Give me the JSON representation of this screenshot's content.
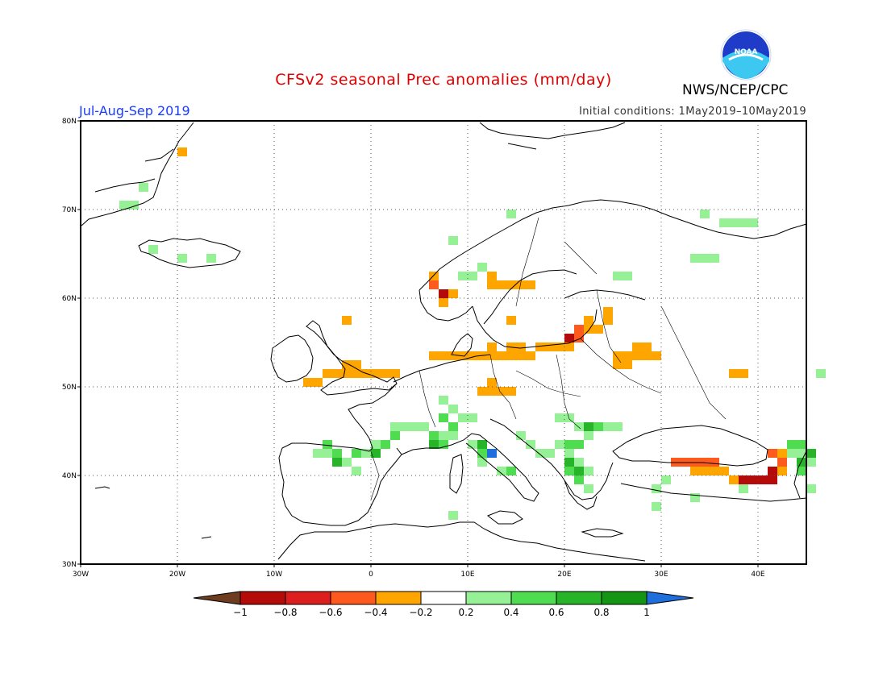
{
  "header": {
    "title": "CFSv2 seasonal Prec anomalies (mm/day)",
    "agency": "NWS/NCEP/CPC",
    "period": "Jul-Aug-Sep 2019",
    "initial_conditions": "Initial conditions: 1May2019–10May2019",
    "logo_text": "NOAA"
  },
  "map": {
    "lat_labels": [
      "80N",
      "70N",
      "60N",
      "50N",
      "40N",
      "30N"
    ],
    "lon_labels": [
      "30W",
      "20W",
      "10W",
      "0",
      "10E",
      "20E",
      "30E",
      "40E"
    ]
  },
  "colorbar": {
    "labels": [
      "−1",
      "−0.8",
      "−0.6",
      "−0.4",
      "−0.2",
      "0.2",
      "0.4",
      "0.6",
      "0.8",
      "1"
    ],
    "colors": [
      "#6e3c1e",
      "#b40a0a",
      "#dc1e1e",
      "#ff5a1e",
      "#ffa500",
      "#ffffff",
      "#96f096",
      "#50dc50",
      "#28b428",
      "#149614",
      "#1e6edc"
    ]
  },
  "anomaly_cells": {
    "cell_lon_deg": 1,
    "cell_lat_deg": 1,
    "green_light": [
      [
        -26,
        70
      ],
      [
        -25,
        70
      ],
      [
        -24,
        72
      ],
      [
        -23,
        65
      ],
      [
        -20,
        64
      ],
      [
        -17,
        64
      ],
      [
        8,
        66
      ],
      [
        9,
        62
      ],
      [
        10,
        62
      ],
      [
        11,
        63
      ],
      [
        14,
        69
      ],
      [
        34,
        69
      ],
      [
        36,
        68
      ],
      [
        37,
        68
      ],
      [
        38,
        68
      ],
      [
        39,
        68
      ],
      [
        33,
        64
      ],
      [
        34,
        64
      ],
      [
        35,
        64
      ],
      [
        25,
        62
      ],
      [
        26,
        62
      ],
      [
        -6,
        42
      ],
      [
        -5,
        42
      ],
      [
        -4,
        41
      ],
      [
        -3,
        41
      ],
      [
        -2,
        42
      ],
      [
        -1,
        42
      ],
      [
        -2,
        40
      ],
      [
        0,
        43
      ],
      [
        1,
        43
      ],
      [
        2,
        45
      ],
      [
        3,
        45
      ],
      [
        4,
        45
      ],
      [
        5,
        45
      ],
      [
        7,
        44
      ],
      [
        8,
        44
      ],
      [
        7,
        48
      ],
      [
        8,
        47
      ],
      [
        9,
        46
      ],
      [
        10,
        46
      ],
      [
        10,
        43
      ],
      [
        11,
        41
      ],
      [
        13,
        40
      ],
      [
        15,
        44
      ],
      [
        16,
        43
      ],
      [
        17,
        42
      ],
      [
        18,
        42
      ],
      [
        19,
        46
      ],
      [
        20,
        46
      ],
      [
        21,
        45
      ],
      [
        22,
        44
      ],
      [
        24,
        45
      ],
      [
        25,
        45
      ],
      [
        19,
        43
      ],
      [
        20,
        42
      ],
      [
        21,
        41
      ],
      [
        22,
        40
      ],
      [
        22,
        38
      ],
      [
        29,
        38
      ],
      [
        30,
        39
      ],
      [
        8,
        35
      ],
      [
        38,
        38
      ],
      [
        42,
        42
      ],
      [
        43,
        42
      ],
      [
        44,
        42
      ],
      [
        45,
        41
      ],
      [
        45,
        38
      ],
      [
        46,
        51
      ],
      [
        29,
        36
      ],
      [
        33,
        37
      ]
    ],
    "green_mid": [
      [
        -5,
        43
      ],
      [
        -4,
        42
      ],
      [
        -2,
        42
      ],
      [
        0,
        42
      ],
      [
        1,
        43
      ],
      [
        2,
        44
      ],
      [
        6,
        44
      ],
      [
        7,
        43
      ],
      [
        8,
        45
      ],
      [
        11,
        42
      ],
      [
        12,
        42
      ],
      [
        14,
        40
      ],
      [
        20,
        43
      ],
      [
        21,
        43
      ],
      [
        22,
        45
      ],
      [
        23,
        45
      ],
      [
        20,
        40
      ],
      [
        21,
        39
      ],
      [
        43,
        43
      ],
      [
        44,
        43
      ],
      [
        45,
        42
      ],
      [
        44,
        40
      ],
      [
        7,
        46
      ]
    ],
    "green_dark": [
      [
        -4,
        41
      ],
      [
        0,
        42
      ],
      [
        11,
        43
      ],
      [
        12,
        42
      ],
      [
        22,
        45
      ],
      [
        20,
        41
      ],
      [
        21,
        40
      ],
      [
        44,
        41
      ],
      [
        45,
        42
      ],
      [
        6,
        43
      ]
    ],
    "blue": [
      [
        12,
        42
      ]
    ],
    "orange": [
      [
        -20,
        76
      ],
      [
        -7,
        50
      ],
      [
        -6,
        50
      ],
      [
        -5,
        51
      ],
      [
        -4,
        51
      ],
      [
        -3,
        51
      ],
      [
        -2,
        51
      ],
      [
        -1,
        51
      ],
      [
        0,
        51
      ],
      [
        1,
        51
      ],
      [
        2,
        51
      ],
      [
        -3,
        52
      ],
      [
        -2,
        52
      ],
      [
        -3,
        57
      ],
      [
        6,
        62
      ],
      [
        6,
        61
      ],
      [
        7,
        60
      ],
      [
        7,
        59
      ],
      [
        8,
        60
      ],
      [
        12,
        61
      ],
      [
        13,
        61
      ],
      [
        14,
        61
      ],
      [
        15,
        61
      ],
      [
        16,
        61
      ],
      [
        12,
        62
      ],
      [
        14,
        57
      ],
      [
        6,
        53
      ],
      [
        7,
        53
      ],
      [
        8,
        53
      ],
      [
        9,
        53
      ],
      [
        10,
        53
      ],
      [
        11,
        53
      ],
      [
        12,
        53
      ],
      [
        13,
        53
      ],
      [
        14,
        53
      ],
      [
        15,
        53
      ],
      [
        16,
        53
      ],
      [
        17,
        54
      ],
      [
        18,
        54
      ],
      [
        19,
        54
      ],
      [
        20,
        54
      ],
      [
        21,
        55
      ],
      [
        22,
        56
      ],
      [
        23,
        56
      ],
      [
        24,
        57
      ],
      [
        24,
        58
      ],
      [
        22,
        57
      ],
      [
        14,
        54
      ],
      [
        15,
        54
      ],
      [
        12,
        54
      ],
      [
        11,
        49
      ],
      [
        12,
        49
      ],
      [
        13,
        49
      ],
      [
        14,
        49
      ],
      [
        12,
        50
      ],
      [
        25,
        53
      ],
      [
        26,
        53
      ],
      [
        27,
        53
      ],
      [
        28,
        53
      ],
      [
        29,
        53
      ],
      [
        25,
        52
      ],
      [
        26,
        52
      ],
      [
        27,
        54
      ],
      [
        28,
        54
      ],
      [
        37,
        51
      ],
      [
        38,
        51
      ],
      [
        33,
        40
      ],
      [
        34,
        40
      ],
      [
        35,
        40
      ],
      [
        36,
        40
      ],
      [
        37,
        39
      ],
      [
        41,
        42
      ],
      [
        42,
        42
      ],
      [
        42,
        40
      ]
    ],
    "red_orange": [
      [
        6,
        61
      ],
      [
        7,
        60
      ],
      [
        21,
        55
      ],
      [
        21,
        56
      ],
      [
        31,
        41
      ],
      [
        32,
        41
      ],
      [
        33,
        41
      ],
      [
        34,
        41
      ],
      [
        35,
        41
      ],
      [
        42,
        41
      ],
      [
        41,
        42
      ]
    ],
    "red": [
      [
        7,
        60
      ],
      [
        20,
        55
      ],
      [
        38,
        39
      ],
      [
        39,
        39
      ],
      [
        40,
        39
      ],
      [
        41,
        39
      ],
      [
        41,
        40
      ]
    ]
  }
}
